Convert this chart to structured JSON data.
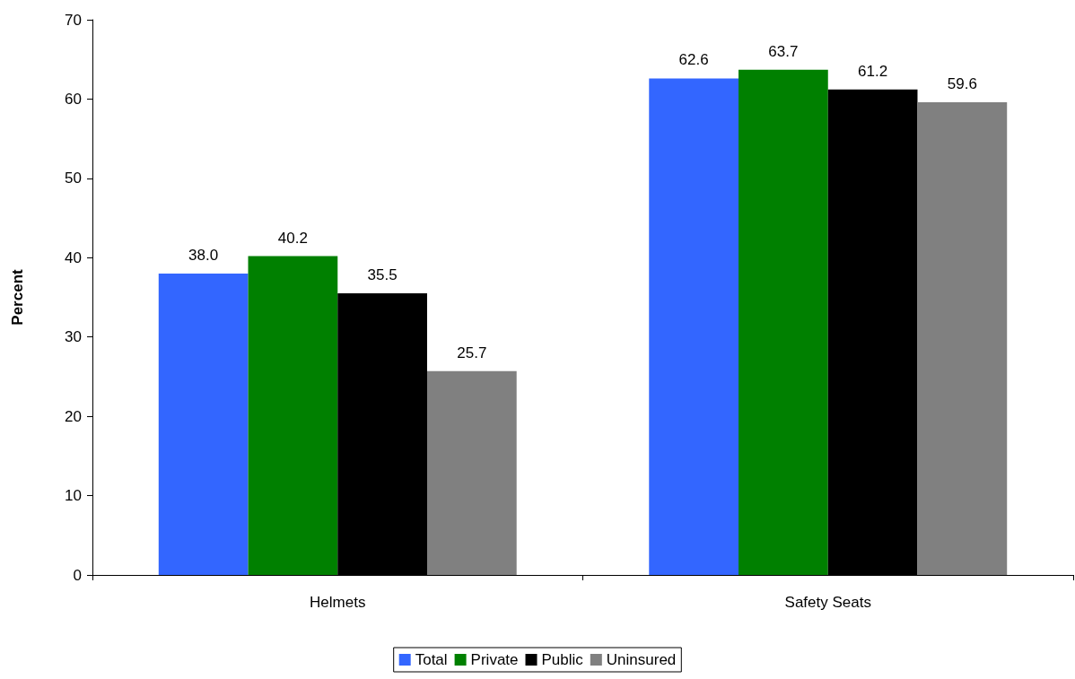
{
  "chart_data": {
    "type": "bar",
    "ylabel": "Percent",
    "categories": [
      "Helmets",
      "Safety Seats"
    ],
    "series": [
      {
        "name": "Total",
        "color": "#3366ff",
        "values": [
          38.0,
          62.6
        ]
      },
      {
        "name": "Private",
        "color": "#008000",
        "values": [
          40.2,
          63.7
        ]
      },
      {
        "name": "Public",
        "color": "#000000",
        "values": [
          35.5,
          61.2
        ]
      },
      {
        "name": "Uninsured",
        "color": "#808080",
        "values": [
          25.7,
          59.6
        ]
      }
    ],
    "ylim": [
      0,
      70
    ],
    "yticks": [
      0,
      10,
      20,
      30,
      40,
      50,
      60,
      70
    ],
    "value_labels": [
      [
        "38.0",
        "62.6"
      ],
      [
        "40.2",
        "63.7"
      ],
      [
        "35.5",
        "61.2"
      ],
      [
        "25.7",
        "59.6"
      ]
    ],
    "grid": false,
    "legend": "bottom"
  }
}
